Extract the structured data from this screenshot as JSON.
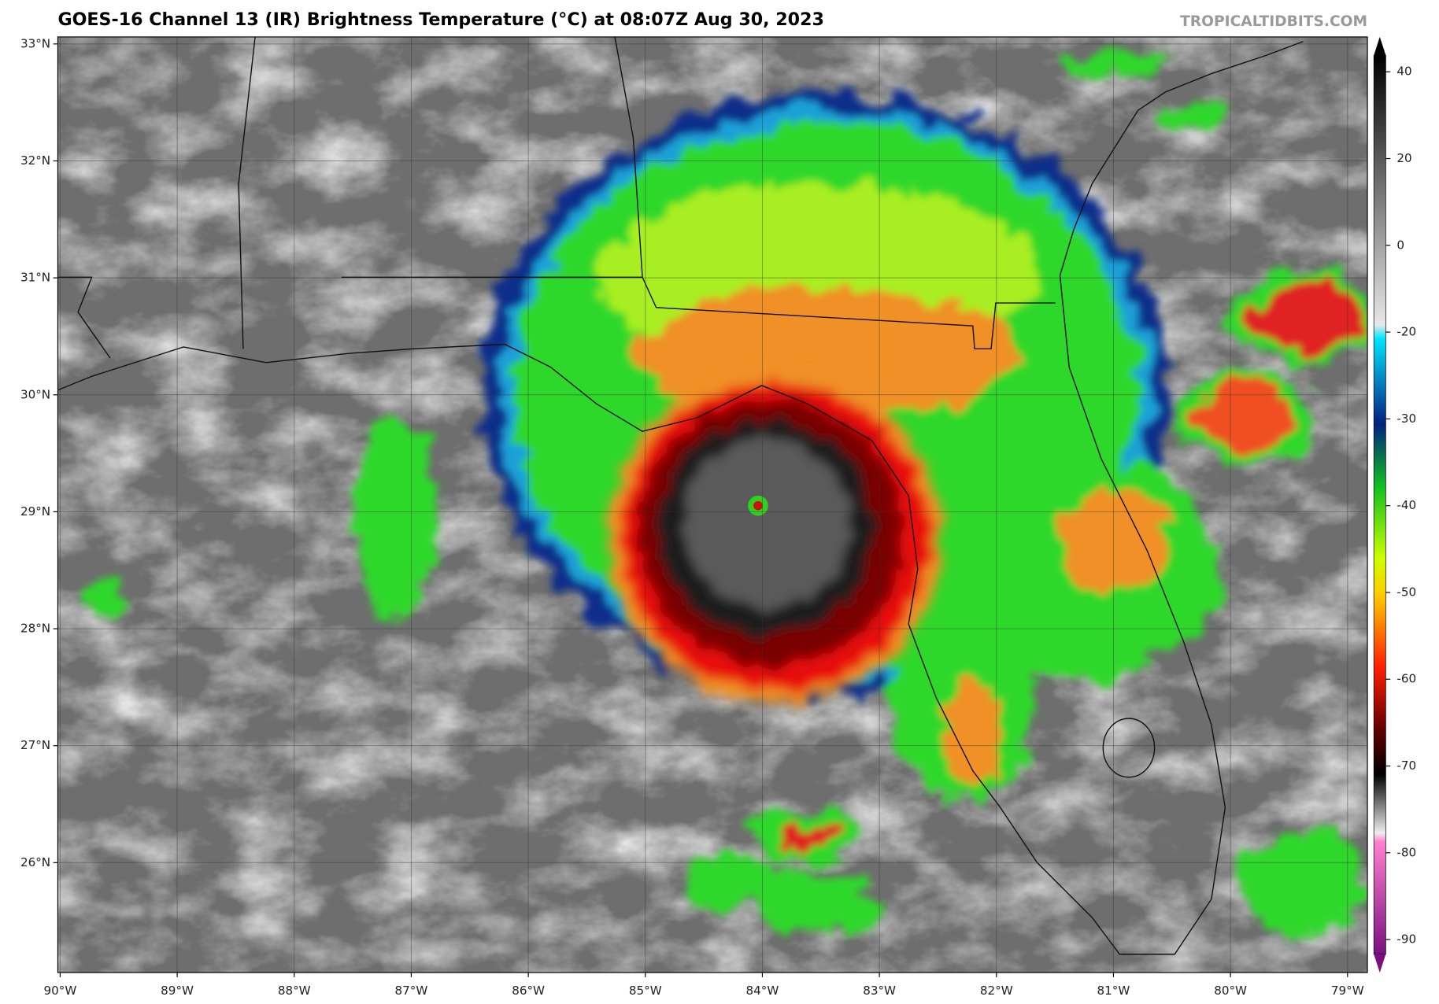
{
  "header": {
    "title": "GOES-16 Channel 13 (IR) Brightness Temperature (°C) at 08:07Z Aug 30, 2023",
    "credit": "TROPICALTIDBITS.COM"
  },
  "map": {
    "latlim": [
      25.06,
      33.06
    ],
    "lonlim": [
      -90.02,
      -78.83
    ],
    "lat_ticks": [
      {
        "value": 33,
        "label": "33°N"
      },
      {
        "value": 32,
        "label": "32°N"
      },
      {
        "value": 31,
        "label": "31°N"
      },
      {
        "value": 30,
        "label": "30°N"
      },
      {
        "value": 29,
        "label": "29°N"
      },
      {
        "value": 28,
        "label": "28°N"
      },
      {
        "value": 27,
        "label": "27°N"
      },
      {
        "value": 26,
        "label": "26°N"
      }
    ],
    "lon_ticks": [
      {
        "value": -90,
        "label": "90°W"
      },
      {
        "value": -89,
        "label": "89°W"
      },
      {
        "value": -88,
        "label": "88°W"
      },
      {
        "value": -87,
        "label": "87°W"
      },
      {
        "value": -86,
        "label": "86°W"
      },
      {
        "value": -85,
        "label": "85°W"
      },
      {
        "value": -84,
        "label": "84°W"
      },
      {
        "value": -83,
        "label": "83°W"
      },
      {
        "value": -82,
        "label": "82°W"
      },
      {
        "value": -81,
        "label": "81°W"
      },
      {
        "value": -80,
        "label": "80°W"
      },
      {
        "value": -79,
        "label": "79°W"
      }
    ]
  },
  "colorbar": {
    "ticks": [
      40,
      20,
      0,
      -20,
      -30,
      -40,
      -50,
      -60,
      -70,
      -80,
      -90
    ]
  }
}
